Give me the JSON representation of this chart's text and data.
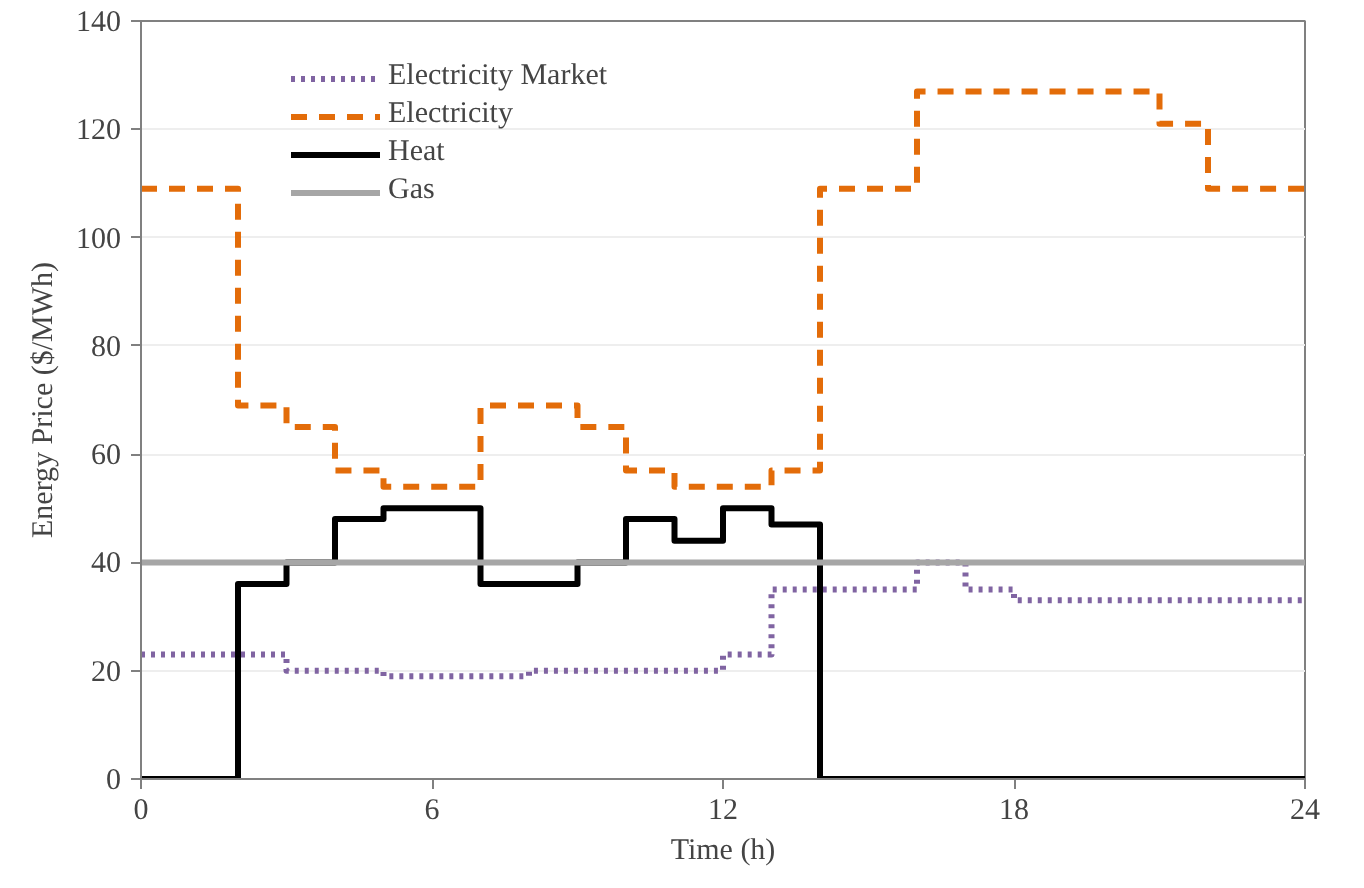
{
  "chart_data": {
    "type": "step",
    "xlabel": "Time (h)",
    "ylabel": "Energy Price ($/MWh)",
    "x": [
      0,
      1,
      2,
      3,
      4,
      5,
      6,
      7,
      8,
      9,
      10,
      11,
      12,
      13,
      14,
      15,
      16,
      17,
      18,
      19,
      20,
      21,
      22,
      23,
      24
    ],
    "series": [
      {
        "name": "Electricity Market",
        "color": "#8064a2",
        "line_style": "dotted",
        "values": [
          23,
          23,
          23,
          20,
          20,
          19,
          19,
          19,
          20,
          20,
          20,
          20,
          23,
          35,
          35,
          35,
          40,
          35,
          33,
          33,
          33,
          33,
          33,
          33,
          33
        ]
      },
      {
        "name": "Electricity",
        "color": "#e36c09",
        "line_style": "dashed",
        "values": [
          109,
          109,
          69,
          65,
          57,
          54,
          54,
          69,
          69,
          65,
          57,
          54,
          54,
          57,
          109,
          109,
          127,
          127,
          127,
          127,
          127,
          121,
          109,
          109,
          109
        ]
      },
      {
        "name": "Heat",
        "color": "#000000",
        "line_style": "solid",
        "values": [
          0,
          0,
          36,
          40,
          48,
          50,
          50,
          36,
          36,
          40,
          48,
          44,
          50,
          47,
          0,
          0,
          0,
          0,
          0,
          0,
          0,
          0,
          0,
          0,
          0
        ]
      },
      {
        "name": "Gas",
        "color": "#a6a6a6",
        "line_style": "solid",
        "values": [
          40,
          40,
          40,
          40,
          40,
          40,
          40,
          40,
          40,
          40,
          40,
          40,
          40,
          40,
          40,
          40,
          40,
          40,
          40,
          40,
          40,
          40,
          40,
          40,
          40
        ]
      }
    ],
    "xlim": [
      0,
      24
    ],
    "xticks": [
      0,
      6,
      12,
      18,
      24
    ],
    "ylim": [
      0,
      140
    ],
    "yticks": [
      0,
      20,
      40,
      60,
      80,
      100,
      120,
      140
    ],
    "grid": "y",
    "legend": "top"
  }
}
